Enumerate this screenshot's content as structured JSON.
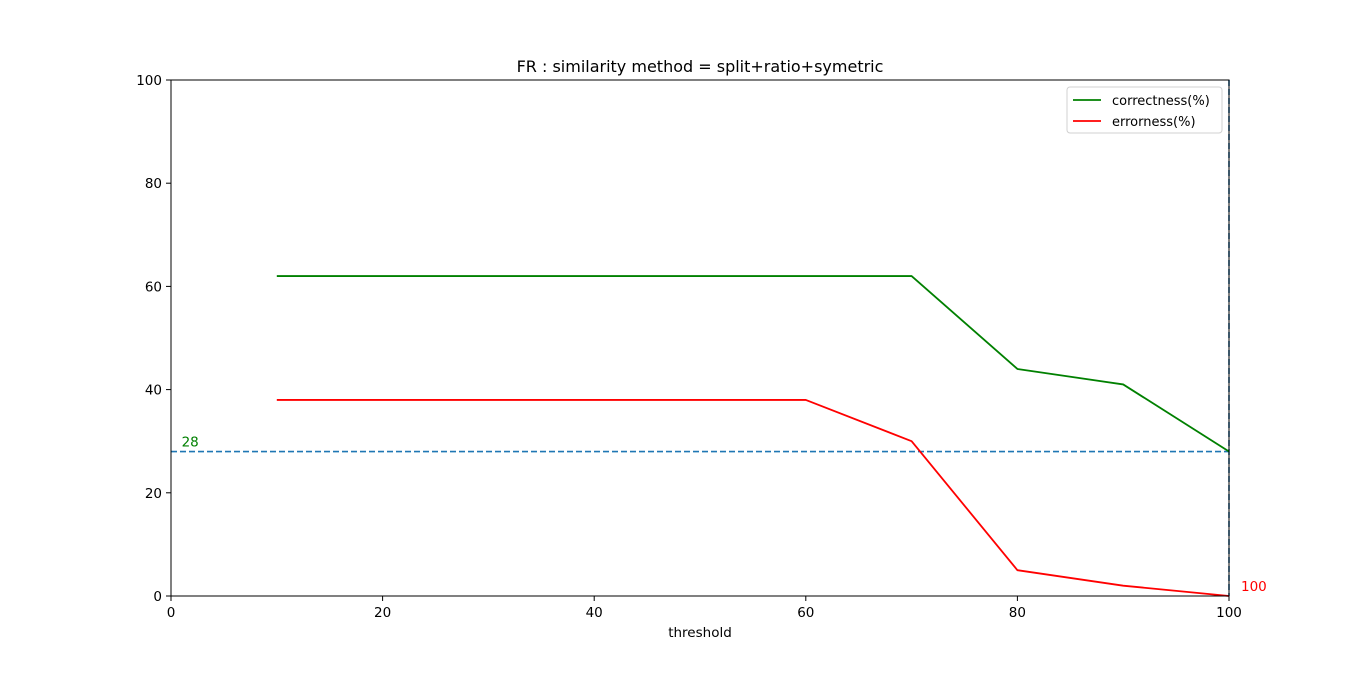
{
  "chart_data": {
    "type": "line",
    "title": "FR : similarity method = split+ratio+symetric",
    "xlabel": "threshold",
    "ylabel": "",
    "xlim": [
      0,
      100
    ],
    "ylim": [
      0,
      100
    ],
    "x_ticks": [
      0,
      20,
      40,
      60,
      80,
      100
    ],
    "y_ticks": [
      0,
      20,
      40,
      60,
      80,
      100
    ],
    "grid": false,
    "legend_position": "top-right",
    "series": [
      {
        "name": "correctness(%)",
        "color": "#008000",
        "x": [
          10,
          20,
          30,
          40,
          50,
          60,
          70,
          80,
          90,
          100
        ],
        "y": [
          62,
          62,
          62,
          62,
          62,
          62,
          62,
          44,
          41,
          28
        ]
      },
      {
        "name": "errorness(%)",
        "color": "#ff0000",
        "x": [
          10,
          20,
          30,
          40,
          50,
          60,
          70,
          80,
          90,
          100
        ],
        "y": [
          38,
          38,
          38,
          38,
          38,
          38,
          30,
          5,
          2,
          0
        ]
      }
    ],
    "reference_lines": [
      {
        "orientation": "horizontal",
        "value": 28,
        "color": "#1f77b4",
        "style": "dashed"
      },
      {
        "orientation": "vertical",
        "value": 100,
        "color": "#1f77b4",
        "style": "dashed"
      }
    ],
    "annotations": [
      {
        "text": "28",
        "x": 1,
        "y": 28,
        "color": "#008000"
      },
      {
        "text": "100",
        "x": 100,
        "y": 0,
        "color": "#ff0000"
      }
    ]
  }
}
